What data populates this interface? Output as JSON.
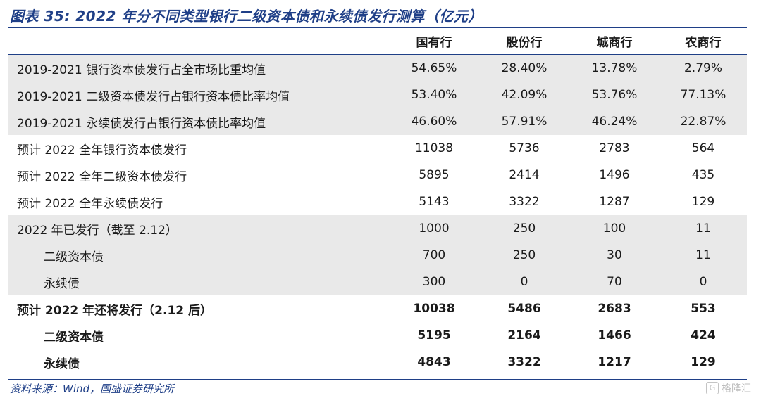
{
  "title": "图表 35: 2022 年分不同类型银行二级资本债和永续债发行测算（亿元）",
  "columns": [
    "",
    "国有行",
    "股份行",
    "城商行",
    "农商行"
  ],
  "rows": [
    {
      "label": "2019-2021 银行资本债发行占全市场比重均值",
      "values": [
        "54.65%",
        "28.40%",
        "13.78%",
        "2.79%"
      ]
    },
    {
      "label": "2019-2021 二级资本债发行占银行资本债比率均值",
      "values": [
        "53.40%",
        "42.09%",
        "53.76%",
        "77.13%"
      ]
    },
    {
      "label": "2019-2021 永续债发行占银行资本债比率均值",
      "values": [
        "46.60%",
        "57.91%",
        "46.24%",
        "22.87%"
      ]
    },
    {
      "label": "预计 2022 全年银行资本债发行",
      "values": [
        "11038",
        "5736",
        "2783",
        "564"
      ]
    },
    {
      "label": "预计 2022 全年二级资本债发行",
      "values": [
        "5895",
        "2414",
        "1496",
        "435"
      ]
    },
    {
      "label": "预计 2022 全年永续债发行",
      "values": [
        "5143",
        "3322",
        "1287",
        "129"
      ]
    },
    {
      "label": "2022 年已发行（截至 2.12）",
      "values": [
        "1000",
        "250",
        "100",
        "11"
      ]
    },
    {
      "label": "二级资本债",
      "values": [
        "700",
        "250",
        "30",
        "11"
      ]
    },
    {
      "label": "永续债",
      "values": [
        "300",
        "0",
        "70",
        "0"
      ]
    },
    {
      "label": "预计 2022 年还将发行（2.12 后）",
      "values": [
        "10038",
        "5486",
        "2683",
        "553"
      ]
    },
    {
      "label": "二级资本债",
      "values": [
        "5195",
        "2164",
        "1466",
        "424"
      ]
    },
    {
      "label": "永续债",
      "values": [
        "4843",
        "3322",
        "1217",
        "129"
      ]
    }
  ],
  "source": "资料来源：Wind，国盛证券研究所",
  "watermark": "格隆汇",
  "watermark_icon": "G"
}
